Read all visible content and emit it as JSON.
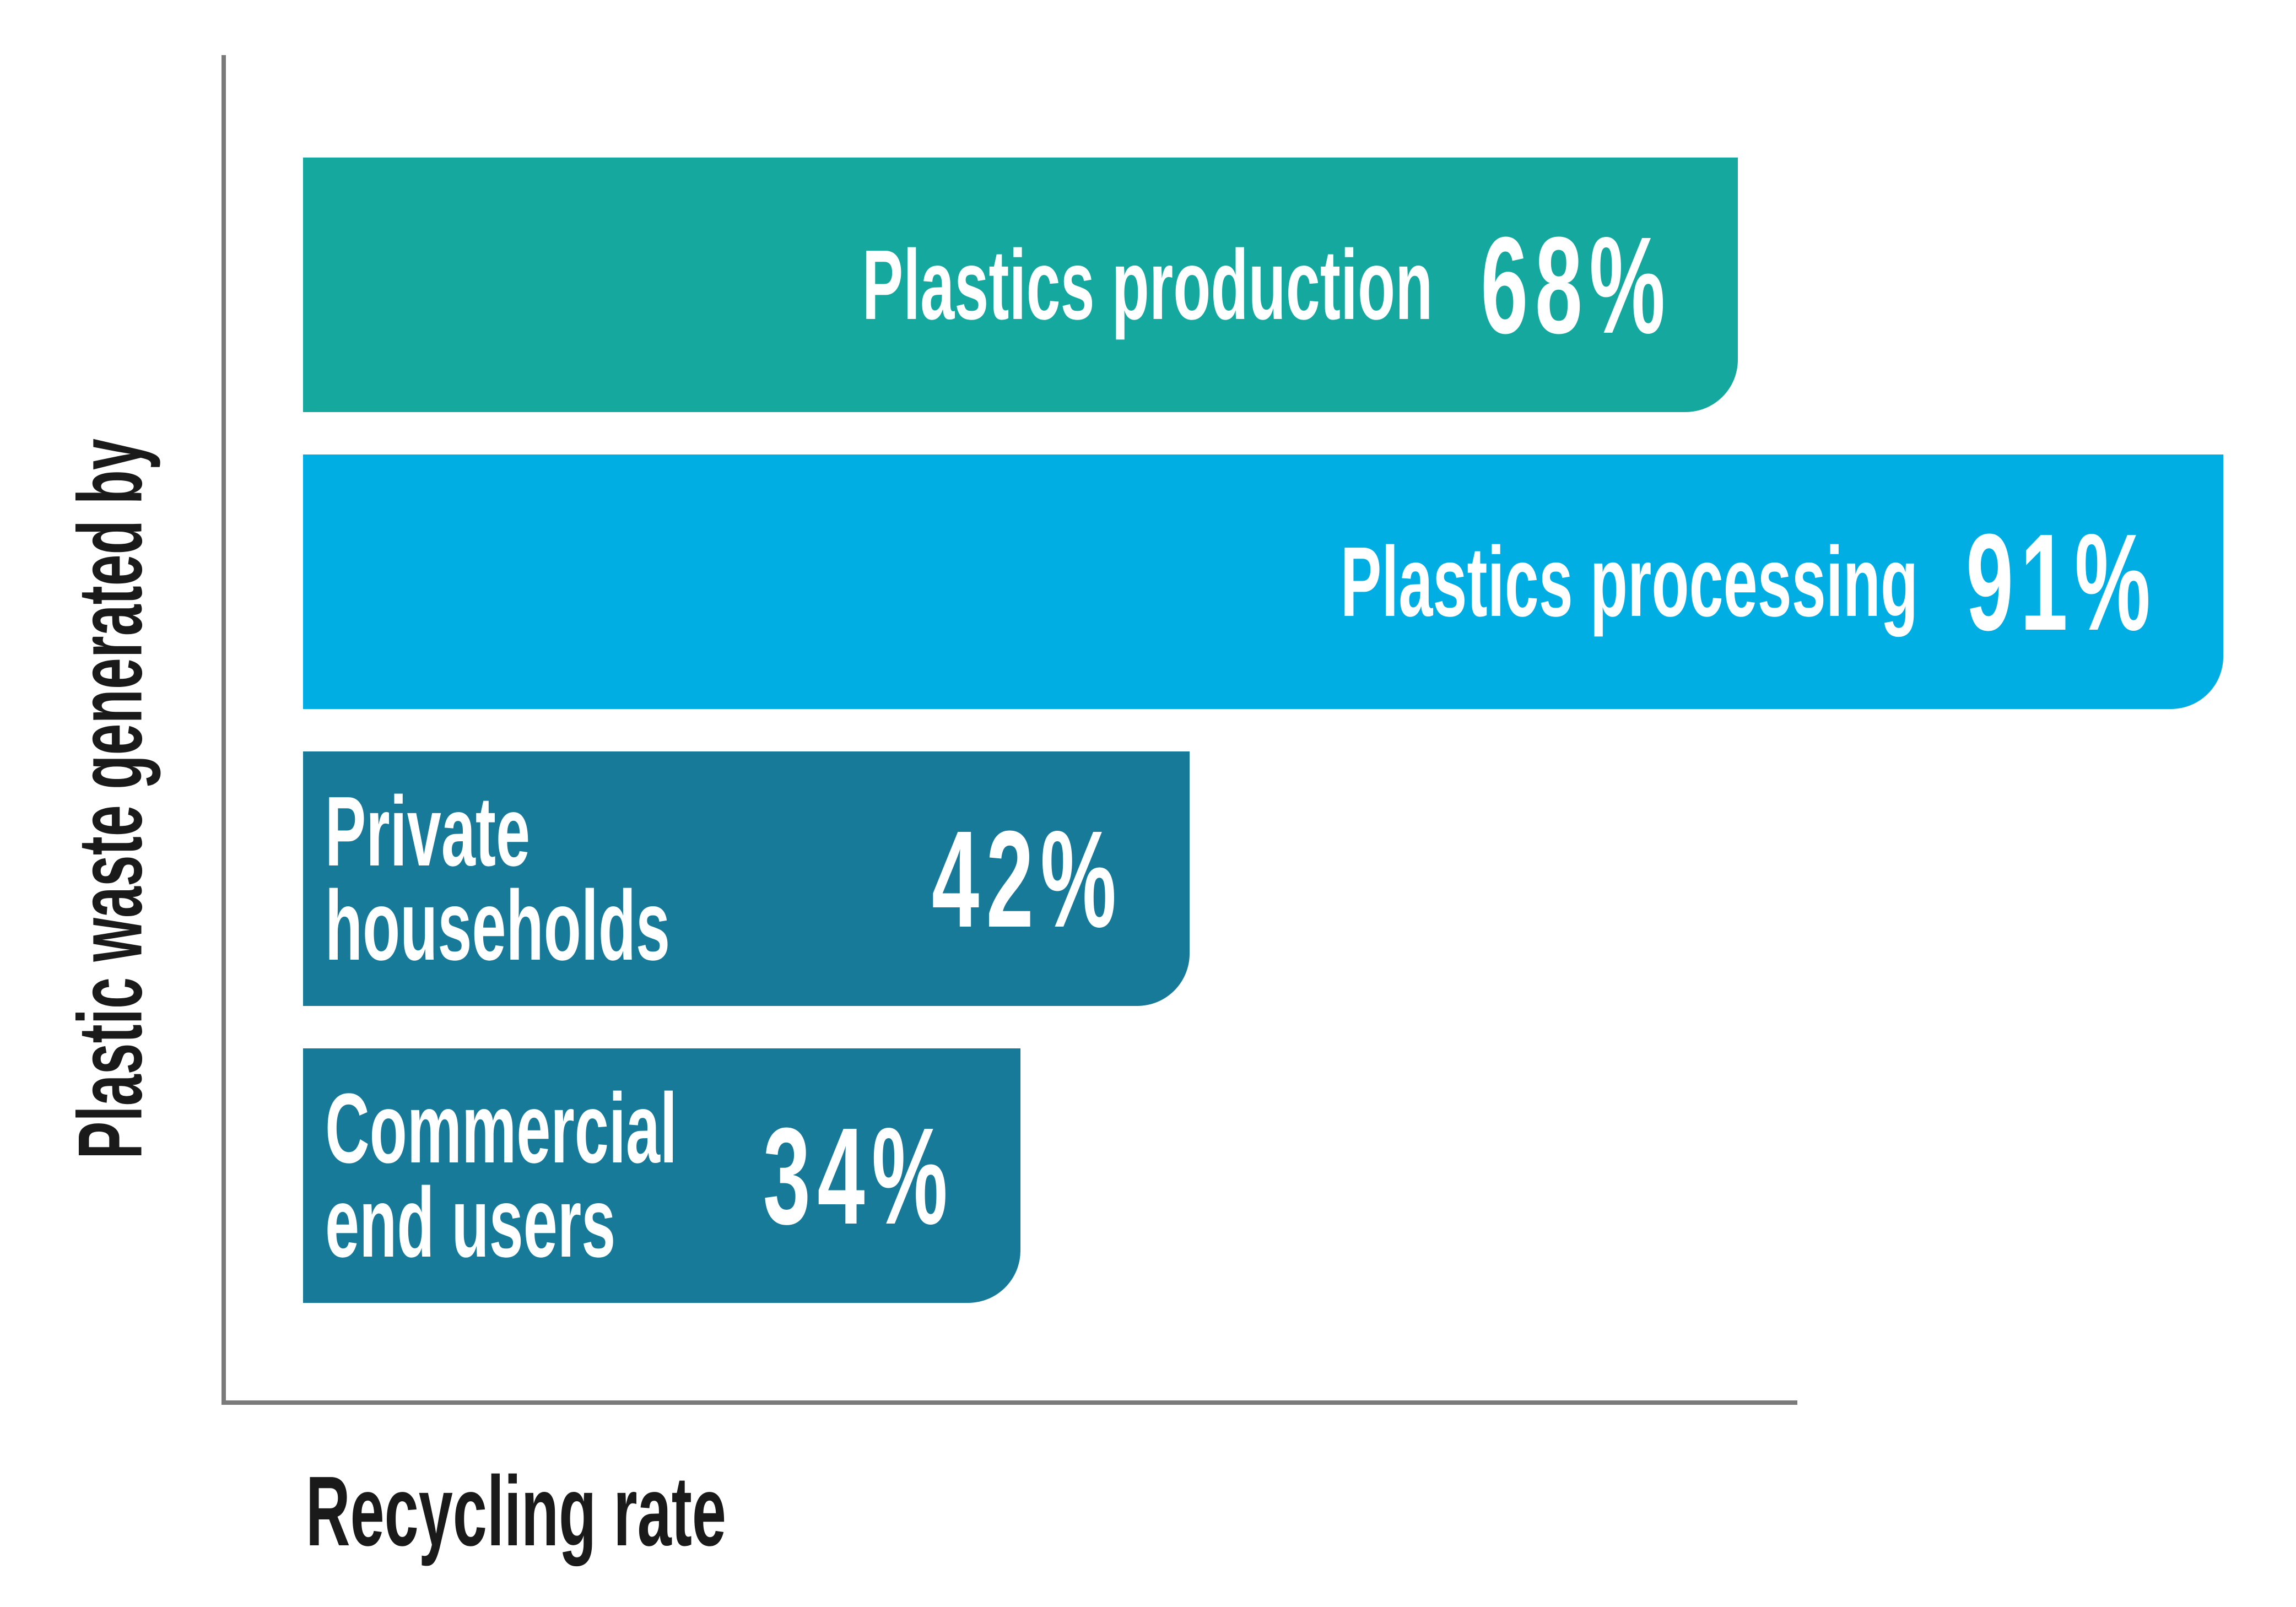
{
  "chart_data": {
    "type": "bar",
    "orientation": "horizontal",
    "xlabel": "Recycling rate",
    "ylabel": "Plastic waste generated by",
    "categories": [
      "Plastics production",
      "Plastics processing",
      "Private households",
      "Commercial end users"
    ],
    "values": [
      68,
      91,
      42,
      34
    ],
    "value_labels": [
      "68%",
      "91%",
      "42%",
      "34%"
    ],
    "colors": [
      "#14a89e",
      "#00aee3",
      "#177a99",
      "#177a99"
    ]
  }
}
